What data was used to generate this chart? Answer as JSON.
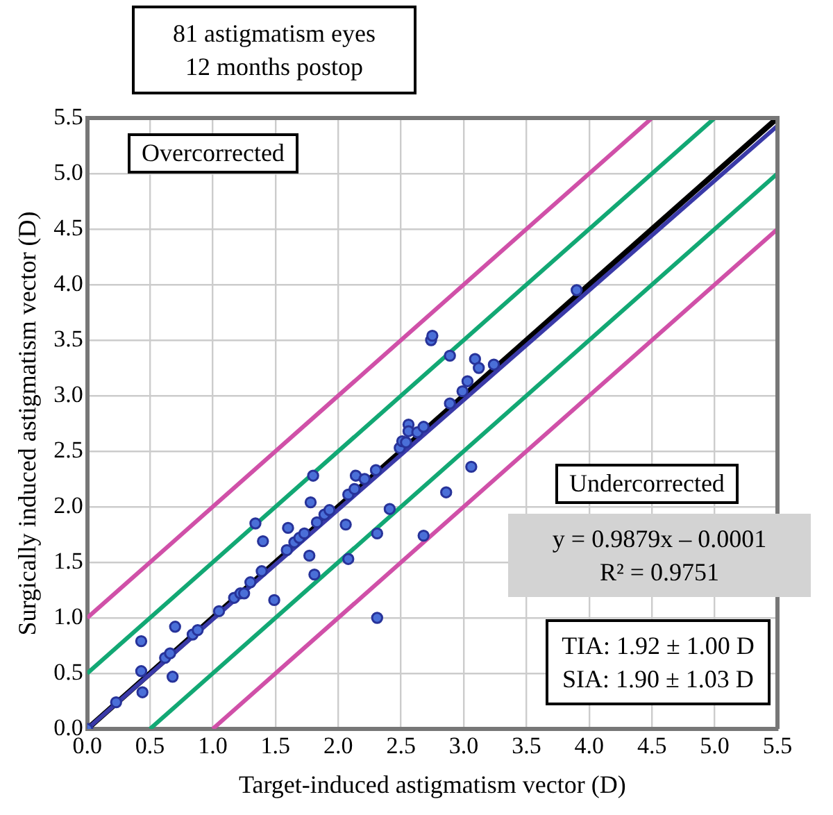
{
  "chart_data": {
    "type": "scatter",
    "title": "81 astigmatism eyes",
    "subtitle": "12 months postop",
    "xlabel": "Target-induced astigmatism vector (D)",
    "ylabel": "Surgically induced astigmatism vector (D)",
    "xlim": [
      0,
      5.5
    ],
    "ylim": [
      0,
      5.5
    ],
    "xticks": [
      {
        "value": 0,
        "label": "0.0"
      },
      {
        "value": 0.5,
        "label": "0.5"
      },
      {
        "value": 1,
        "label": "1.0"
      },
      {
        "value": 1.5,
        "label": "1.5"
      },
      {
        "value": 2,
        "label": "2.0"
      },
      {
        "value": 2.5,
        "label": "2.5"
      },
      {
        "value": 3,
        "label": "3.0"
      },
      {
        "value": 3.5,
        "label": "3.5"
      },
      {
        "value": 4,
        "label": "4.0"
      },
      {
        "value": 4.5,
        "label": "4.5"
      },
      {
        "value": 5,
        "label": "5.0"
      },
      {
        "value": 5.5,
        "label": "5.5"
      }
    ],
    "yticks": [
      {
        "value": 0,
        "label": "0.0"
      },
      {
        "value": 0.5,
        "label": "0.5"
      },
      {
        "value": 1,
        "label": "1.0"
      },
      {
        "value": 1.5,
        "label": "1.5"
      },
      {
        "value": 2,
        "label": "2.0"
      },
      {
        "value": 2.5,
        "label": "2.5"
      },
      {
        "value": 3,
        "label": "3.0"
      },
      {
        "value": 3.5,
        "label": "3.5"
      },
      {
        "value": 4,
        "label": "4.0"
      },
      {
        "value": 4.5,
        "label": "4.5"
      },
      {
        "value": 5,
        "label": "5.0"
      },
      {
        "value": 5.5,
        "label": "5.5"
      }
    ],
    "grid": true,
    "legend": false,
    "annotations": [
      "Overcorrected",
      "Undercorrected",
      "y = 0.9879x – 0.0001",
      "R² = 0.9751",
      "TIA: 1.92 ± 1.00 D",
      "SIA: 1.90 ± 1.03 D"
    ],
    "series": [
      {
        "type": "line",
        "marker": "none",
        "color": "#d050a8",
        "x": [
          0,
          4.5
        ],
        "values": [
          1,
          5.5
        ]
      },
      {
        "type": "line",
        "marker": "none",
        "color": "#d050a8",
        "x": [
          1,
          5.5
        ],
        "values": [
          0,
          4.5
        ]
      },
      {
        "type": "line",
        "marker": "none",
        "color": "#12a874",
        "x": [
          0,
          5
        ],
        "values": [
          0.5,
          5.5
        ]
      },
      {
        "type": "line",
        "marker": "none",
        "color": "#12a874",
        "x": [
          0.5,
          5.5
        ],
        "values": [
          0,
          5
        ]
      },
      {
        "type": "scatter",
        "marker": "circle",
        "color": "#4a6fd8",
        "x": [
          0,
          0.23,
          0.43,
          0.43,
          0.44,
          0.62,
          0.66,
          0.68,
          0.7,
          0.84,
          0.88,
          1.05,
          1.17,
          1.22,
          1.25,
          1.3,
          1.39,
          1.49,
          1.34,
          1.4,
          1.6,
          1.59,
          1.65,
          1.69,
          1.73,
          1.77,
          1.81,
          1.78,
          1.8,
          1.83,
          1.89,
          1.93,
          2.06,
          2.08,
          2.08,
          2.13,
          2.14,
          2.21,
          2.3,
          2.31,
          2.31,
          2.41,
          2.49,
          2.51,
          2.54,
          2.56,
          2.56,
          2.63,
          2.68,
          2.68,
          2.74,
          2.75,
          2.86,
          2.89,
          2.89,
          2.99,
          3.03,
          3.06,
          3.09,
          3.12,
          3.24,
          3.9
        ],
        "values": [
          0,
          0.24,
          0.52,
          0.79,
          0.33,
          0.64,
          0.68,
          0.47,
          0.92,
          0.85,
          0.89,
          1.06,
          1.18,
          1.22,
          1.22,
          1.32,
          1.42,
          1.16,
          1.85,
          1.69,
          1.81,
          1.61,
          1.68,
          1.72,
          1.76,
          1.56,
          1.39,
          2.04,
          2.28,
          1.86,
          1.93,
          1.97,
          1.84,
          1.53,
          2.11,
          2.16,
          2.28,
          2.25,
          2.33,
          1.76,
          1.0,
          1.98,
          2.53,
          2.59,
          2.58,
          2.74,
          2.68,
          2.67,
          2.72,
          1.74,
          3.5,
          3.54,
          2.13,
          3.36,
          2.93,
          3.04,
          3.13,
          2.36,
          3.33,
          3.25,
          3.28,
          3.95
        ]
      },
      {
        "type": "line",
        "marker": "none",
        "color": "#3a3aa8",
        "x": [
          0,
          5.5
        ],
        "values": [
          0,
          5.43
        ]
      },
      {
        "type": "line",
        "marker": "none",
        "color": "#000000",
        "x": [
          0,
          5.5
        ],
        "values": [
          0,
          5.5
        ]
      }
    ]
  }
}
